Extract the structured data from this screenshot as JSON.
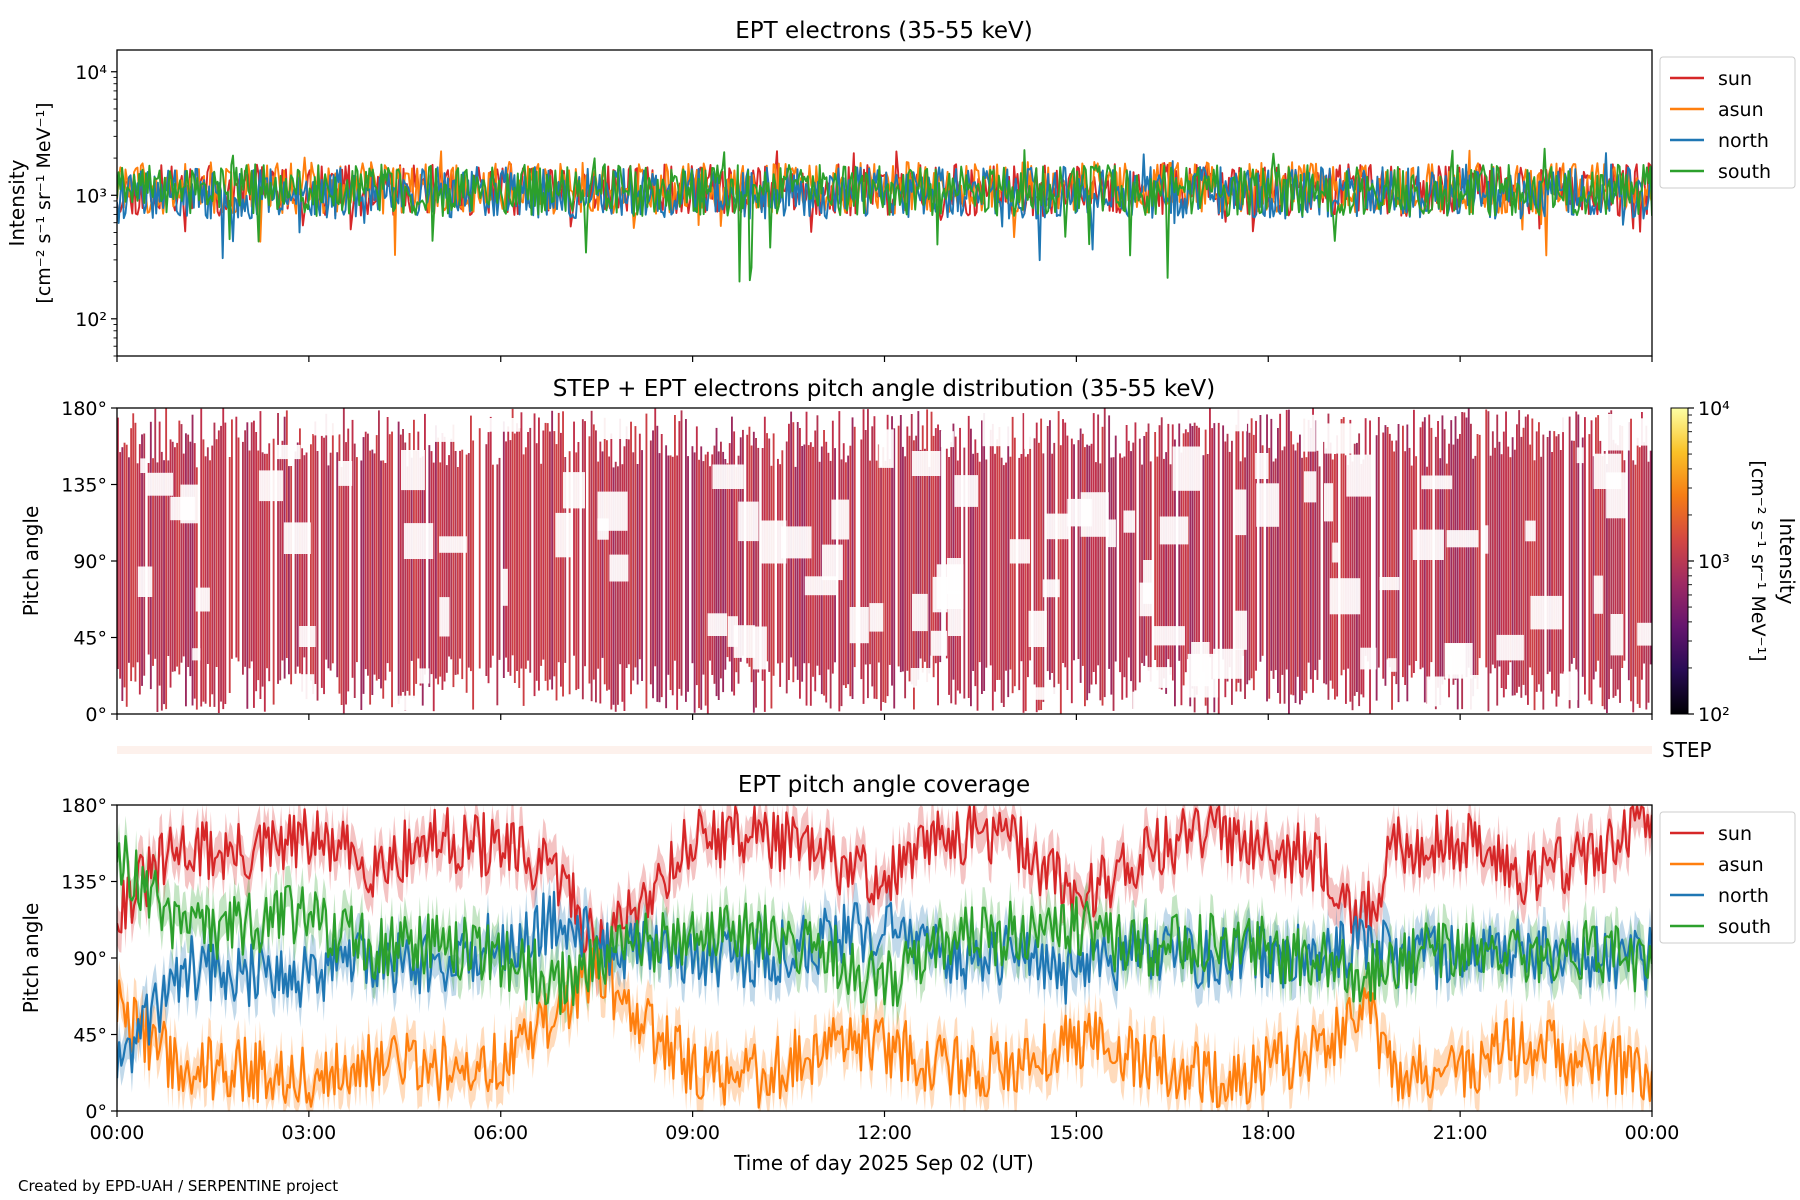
{
  "footer_credit": "Created by EPD-UAH / SERPENTINE project",
  "x_axis": {
    "label": "Time of day 2025 Sep 02 (UT)",
    "ticks": [
      "00:00",
      "03:00",
      "06:00",
      "09:00",
      "12:00",
      "15:00",
      "18:00",
      "21:00",
      "00:00"
    ],
    "range_hours": [
      0,
      24
    ]
  },
  "colors": {
    "sun": "#d62728",
    "asun": "#ff7f0e",
    "north": "#1f77b4",
    "south": "#2ca02c",
    "pad_fill": "#c0304a",
    "step_strip": "#fdf1ec"
  },
  "chart_data": [
    {
      "id": "intensity",
      "type": "line",
      "title": "EPT electrons (35-55 keV)",
      "ylabel_line1": "Intensity",
      "ylabel_line2": "[cm⁻² s⁻¹ sr⁻¹ MeV⁻¹]",
      "yscale": "log",
      "ylim": [
        50,
        15000
      ],
      "ytick_labels": [
        "10⁴",
        "10³",
        "10²"
      ],
      "ytick_values": [
        10000,
        1000,
        100
      ],
      "legend_position": "outside-right-top",
      "series": [
        {
          "name": "sun",
          "typical": 1100,
          "min": 500,
          "max": 2400
        },
        {
          "name": "asun",
          "typical": 1150,
          "min": 300,
          "max": 2500
        },
        {
          "name": "north",
          "typical": 1050,
          "min": 290,
          "max": 2200
        },
        {
          "name": "south",
          "typical": 1100,
          "min": 200,
          "max": 2400
        }
      ]
    },
    {
      "id": "pad",
      "type": "heatmap",
      "title": "STEP + EPT electrons pitch angle distribution (35-55 keV)",
      "ylabel": "Pitch angle",
      "ylim": [
        0,
        180
      ],
      "ytick_labels": [
        "180°",
        "135°",
        "90°",
        "45°",
        "0°"
      ],
      "ytick_values": [
        180,
        135,
        90,
        45,
        0
      ],
      "colorbar": {
        "label_line1": "Intensity",
        "label_line2": "[cm⁻² s⁻¹ sr⁻¹ MeV⁻¹]",
        "scale": "log",
        "range": [
          100,
          10000
        ],
        "tick_labels": [
          "10⁴",
          "10³",
          "10²"
        ],
        "colormap": [
          "#000004",
          "#280b54",
          "#65156e",
          "#9f2a63",
          "#d44842",
          "#f57d15",
          "#fac228",
          "#fcffa4"
        ]
      },
      "typical_intensity": 1000
    },
    {
      "id": "step",
      "type": "heatmap",
      "label": "STEP"
    },
    {
      "id": "coverage",
      "type": "line",
      "title": "EPT pitch angle coverage",
      "ylabel": "Pitch angle",
      "ylim": [
        0,
        180
      ],
      "ytick_labels": [
        "180°",
        "135°",
        "90°",
        "45°",
        "0°"
      ],
      "ytick_values": [
        180,
        135,
        90,
        45,
        0
      ],
      "legend_position": "outside-right-top",
      "series": [
        {
          "name": "sun",
          "hours": [
            0,
            1,
            2,
            3,
            4,
            5,
            6,
            7,
            7.5,
            8,
            9,
            10,
            11,
            12,
            13,
            14,
            15,
            16,
            17,
            18,
            19,
            19.5,
            20,
            21,
            22,
            23,
            24
          ],
          "pitch_angle": [
            120,
            155,
            150,
            160,
            145,
            160,
            155,
            135,
            95,
            115,
            160,
            165,
            150,
            135,
            165,
            160,
            125,
            150,
            165,
            160,
            140,
            110,
            155,
            160,
            140,
            150,
            170
          ]
        },
        {
          "name": "asun",
          "hours": [
            0,
            1,
            2,
            3,
            4,
            5,
            6,
            7,
            7.5,
            8,
            9,
            10,
            11,
            12,
            13,
            14,
            15,
            16,
            17,
            18,
            19,
            19.5,
            20,
            21,
            22,
            23,
            24
          ],
          "pitch_angle": [
            60,
            25,
            25,
            20,
            30,
            25,
            30,
            60,
            85,
            60,
            25,
            20,
            35,
            40,
            25,
            25,
            45,
            30,
            20,
            25,
            40,
            60,
            25,
            25,
            40,
            30,
            20
          ]
        },
        {
          "name": "north",
          "hours": [
            0,
            1,
            2,
            3,
            4,
            5,
            6,
            7,
            7.5,
            8,
            9,
            10,
            11,
            12,
            13,
            14,
            15,
            16,
            17,
            18,
            19,
            19.5,
            20,
            21,
            22,
            23,
            24
          ],
          "pitch_angle": [
            25,
            85,
            80,
            80,
            90,
            85,
            100,
            115,
            100,
            95,
            90,
            90,
            100,
            110,
            90,
            90,
            80,
            95,
            90,
            90,
            95,
            100,
            90,
            90,
            95,
            90,
            90
          ]
        },
        {
          "name": "south",
          "hours": [
            0,
            1,
            2,
            3,
            4,
            5,
            6,
            7,
            7.5,
            8,
            9,
            10,
            11,
            12,
            13,
            14,
            15,
            16,
            17,
            18,
            19,
            19.5,
            20,
            21,
            22,
            23,
            24
          ],
          "pitch_angle": [
            150,
            105,
            110,
            115,
            95,
            100,
            90,
            75,
            90,
            95,
            105,
            110,
            95,
            75,
            100,
            105,
            110,
            95,
            100,
            95,
            85,
            80,
            90,
            95,
            90,
            95,
            85
          ]
        }
      ]
    }
  ]
}
